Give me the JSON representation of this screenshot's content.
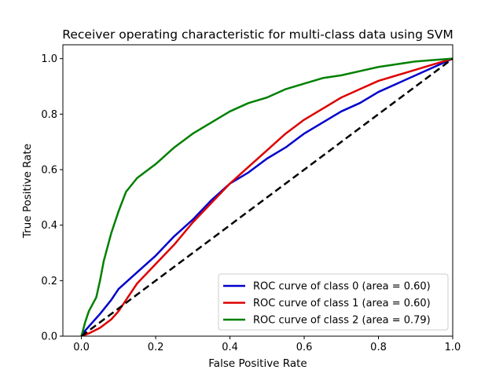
{
  "chart_data": {
    "type": "line",
    "title": "Receiver operating characteristic for multi-class data using SVM",
    "xlabel": "False Positive Rate",
    "ylabel": "True Positive Rate",
    "xlim": [
      -0.05,
      1.0
    ],
    "ylim": [
      0.0,
      1.05
    ],
    "xticks": [
      0.0,
      0.2,
      0.4,
      0.6,
      0.8,
      1.0
    ],
    "yticks": [
      0.0,
      0.2,
      0.4,
      0.6,
      0.8,
      1.0
    ],
    "xtick_labels": [
      "0.0",
      "0.2",
      "0.4",
      "0.6",
      "0.8",
      "1.0"
    ],
    "ytick_labels": [
      "0.0",
      "0.2",
      "0.4",
      "0.6",
      "0.8",
      "1.0"
    ],
    "grid": false,
    "legend_position": "lower-right",
    "series": [
      {
        "name": "ROC curve of class 0 (area = 0.60)",
        "color": "#0000cc",
        "style": "solid",
        "x": [
          0.0,
          0.01,
          0.03,
          0.05,
          0.08,
          0.1,
          0.15,
          0.2,
          0.25,
          0.3,
          0.35,
          0.4,
          0.45,
          0.5,
          0.55,
          0.6,
          0.65,
          0.7,
          0.75,
          0.8,
          0.85,
          0.9,
          0.95,
          1.0
        ],
        "y": [
          0.0,
          0.02,
          0.05,
          0.08,
          0.13,
          0.17,
          0.23,
          0.29,
          0.36,
          0.42,
          0.49,
          0.55,
          0.59,
          0.64,
          0.68,
          0.73,
          0.77,
          0.81,
          0.84,
          0.88,
          0.91,
          0.94,
          0.97,
          1.0
        ]
      },
      {
        "name": "ROC curve of class 1 (area = 0.60)",
        "color": "#dd0000",
        "style": "solid",
        "x": [
          0.0,
          0.02,
          0.05,
          0.08,
          0.1,
          0.12,
          0.15,
          0.2,
          0.25,
          0.3,
          0.35,
          0.4,
          0.45,
          0.5,
          0.55,
          0.6,
          0.65,
          0.7,
          0.75,
          0.8,
          0.85,
          0.9,
          0.95,
          1.0
        ],
        "y": [
          0.0,
          0.01,
          0.03,
          0.06,
          0.09,
          0.13,
          0.19,
          0.26,
          0.33,
          0.41,
          0.48,
          0.55,
          0.61,
          0.67,
          0.73,
          0.78,
          0.82,
          0.86,
          0.89,
          0.92,
          0.94,
          0.96,
          0.98,
          1.0
        ]
      },
      {
        "name": "ROC curve of class 2 (area = 0.79)",
        "color": "#008000",
        "style": "solid",
        "x": [
          0.0,
          0.01,
          0.02,
          0.04,
          0.05,
          0.06,
          0.08,
          0.1,
          0.12,
          0.15,
          0.2,
          0.25,
          0.3,
          0.35,
          0.4,
          0.45,
          0.5,
          0.55,
          0.6,
          0.65,
          0.7,
          0.75,
          0.8,
          0.85,
          0.9,
          0.95,
          1.0
        ],
        "y": [
          0.0,
          0.05,
          0.09,
          0.14,
          0.2,
          0.27,
          0.37,
          0.45,
          0.52,
          0.57,
          0.62,
          0.68,
          0.73,
          0.77,
          0.81,
          0.84,
          0.86,
          0.89,
          0.91,
          0.93,
          0.94,
          0.955,
          0.97,
          0.98,
          0.99,
          0.995,
          1.0
        ]
      },
      {
        "name": "",
        "color": "#000000",
        "style": "dashed",
        "x": [
          0.0,
          1.0
        ],
        "y": [
          0.0,
          1.0
        ]
      }
    ]
  }
}
